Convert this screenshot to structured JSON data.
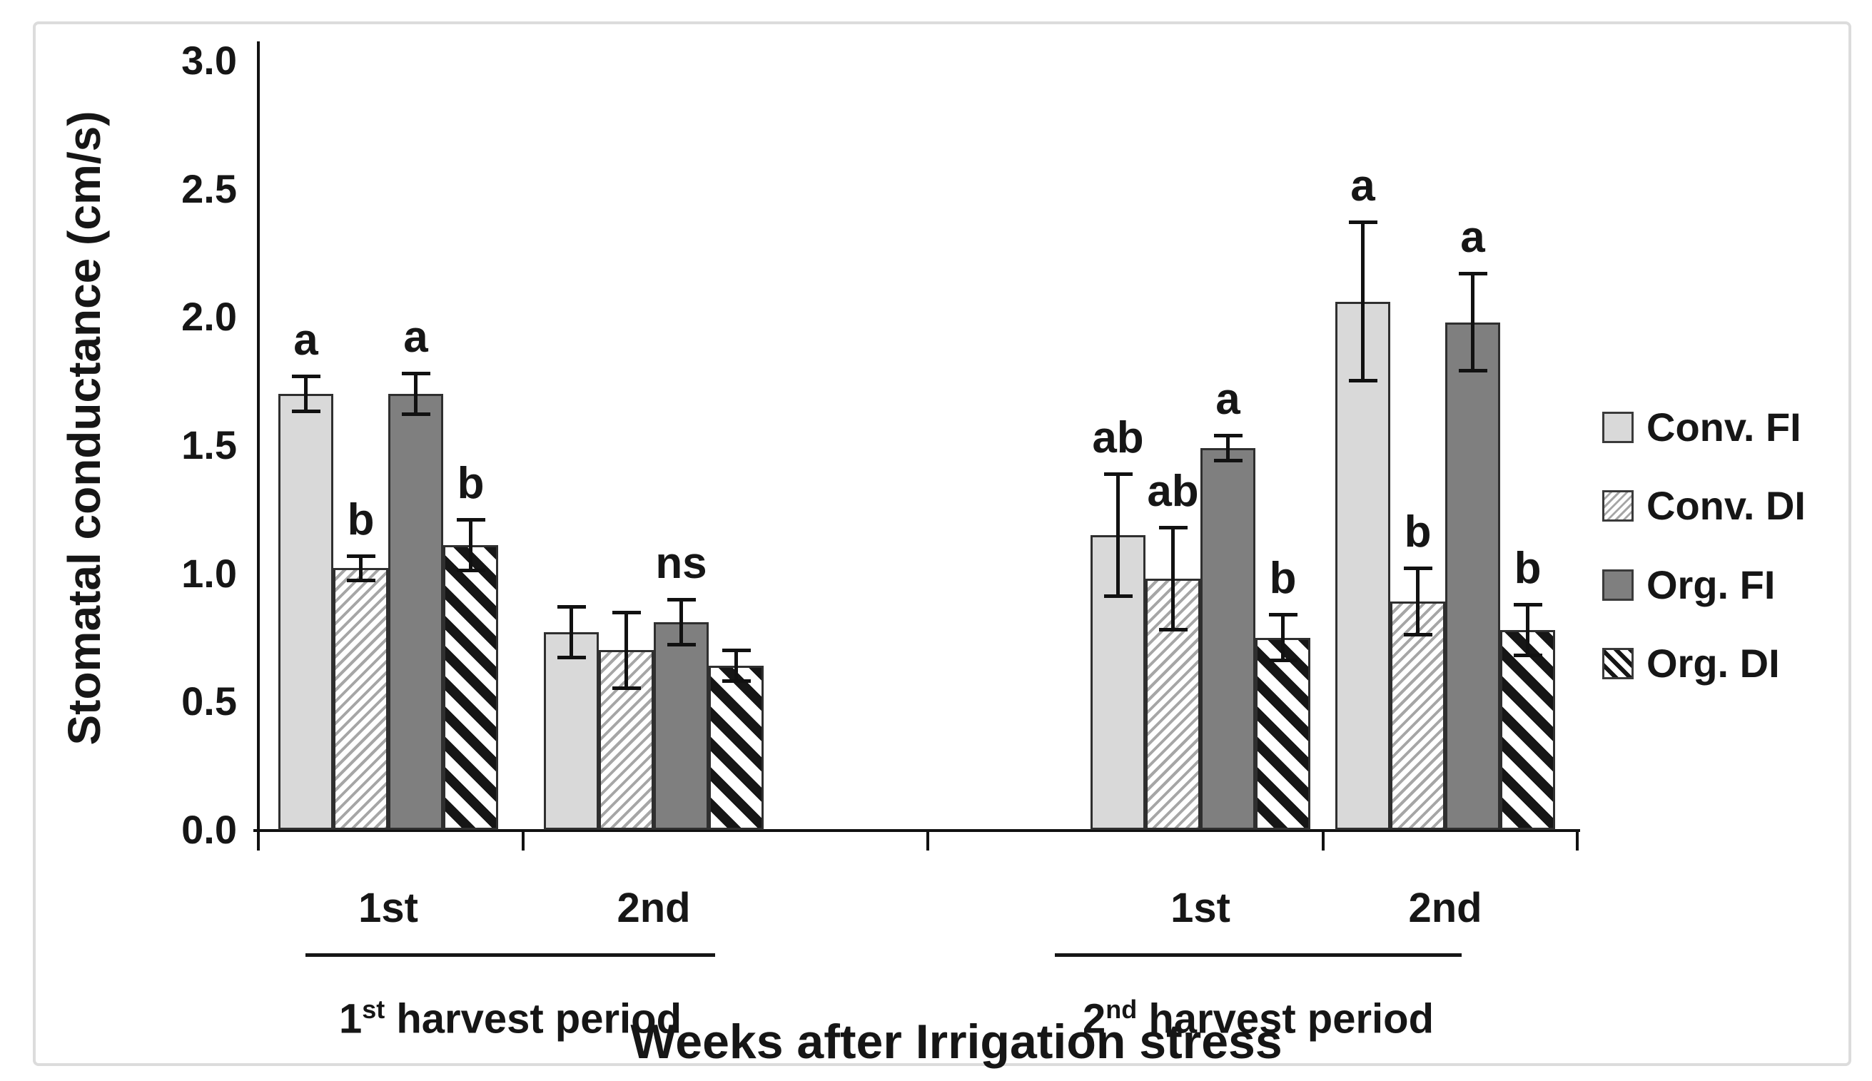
{
  "figure": {
    "background": "#ffffff",
    "border_color": "#dcdcdc"
  },
  "colors": {
    "conv_fi_fill": "#d9d9d9",
    "org_fi_fill": "#7f7f7f",
    "hatch_light": "#a6a6a6",
    "hatch_dark": "#161616",
    "bar_border": "#2f2f2f",
    "axis": "#111111",
    "text": "#161616"
  },
  "y_axis": {
    "title": "Stomatal conductance (cm/s)",
    "tick_labels": [
      "3.0",
      "2.5",
      "2.0",
      "1.5",
      "1.0",
      "0.5",
      "0.0"
    ],
    "min": 0,
    "max": 3,
    "step": 0.5
  },
  "x_axis": {
    "title": "Weeks after Irrigation stress",
    "periods": [
      {
        "num": "1",
        "sup": "st",
        "rest": " harvest period",
        "weeks": [
          "1st",
          "2nd"
        ]
      },
      {
        "num": "2",
        "sup": "nd",
        "rest": " harvest period",
        "weeks": [
          "1st",
          "2nd"
        ]
      }
    ]
  },
  "legend": {
    "items": [
      {
        "label": "Conv. FI",
        "pattern": "conv-fi"
      },
      {
        "label": "Conv. DI",
        "pattern": "conv-di"
      },
      {
        "label": "Org. FI",
        "pattern": "org-fi"
      },
      {
        "label": "Org. DI",
        "pattern": "org-di"
      }
    ]
  },
  "chart_data": {
    "type": "bar",
    "title": "",
    "xlabel": "Weeks after Irrigation stress",
    "ylabel": "Stomatal conductance (cm/s)",
    "ylim": [
      0,
      3.0
    ],
    "ytick_step": 0.5,
    "grid": false,
    "legend_position": "right",
    "error_bars": true,
    "series": [
      "Conv. FI",
      "Conv. DI",
      "Org. FI",
      "Org. DI"
    ],
    "groups": [
      {
        "period": "1st harvest period",
        "week": "1st",
        "values": [
          1.7,
          1.02,
          1.7,
          1.11
        ],
        "errors": [
          0.07,
          0.05,
          0.08,
          0.1
        ],
        "letters": [
          "a",
          "b",
          "a",
          "b"
        ]
      },
      {
        "period": "1st harvest period",
        "week": "2nd",
        "values": [
          0.77,
          0.7,
          0.81,
          0.64
        ],
        "errors": [
          0.1,
          0.15,
          0.09,
          0.06
        ],
        "letters": [
          "",
          "",
          "ns",
          ""
        ]
      },
      {
        "period": "2nd harvest period",
        "week": "1st",
        "values": [
          1.15,
          0.98,
          1.49,
          0.75
        ],
        "errors": [
          0.24,
          0.2,
          0.05,
          0.09
        ],
        "letters": [
          "ab",
          "ab",
          "a",
          "b"
        ]
      },
      {
        "period": "2nd harvest period",
        "week": "2nd",
        "values": [
          2.06,
          0.89,
          1.98,
          0.78
        ],
        "errors": [
          0.31,
          0.13,
          0.19,
          0.1
        ],
        "letters": [
          "a",
          "b",
          "a",
          "b"
        ]
      }
    ]
  }
}
